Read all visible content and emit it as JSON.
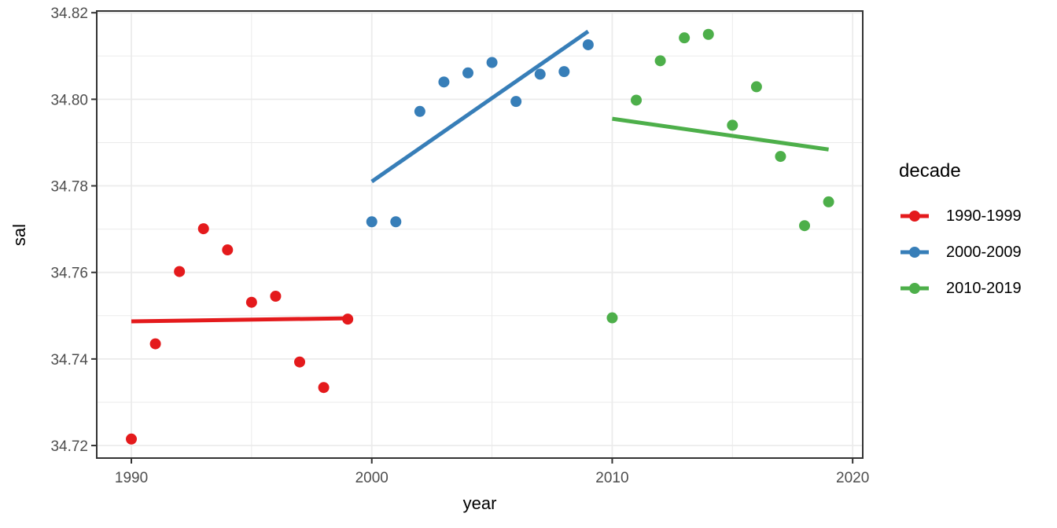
{
  "chart_data": {
    "type": "scatter",
    "title": "",
    "xlabel": "year",
    "ylabel": "sal",
    "legend_title": "decade",
    "legend_position": "right",
    "grid": true,
    "x_range": [
      1988.56,
      2020.42
    ],
    "y_range": [
      34.7171,
      34.8204
    ],
    "x_ticks": {
      "values": [
        1990,
        2000,
        2010,
        2020
      ],
      "labels": [
        "1990",
        "2000",
        "2010",
        "2020"
      ],
      "minor": [
        1995,
        2005,
        2015
      ]
    },
    "y_ticks": {
      "values": [
        34.72,
        34.74,
        34.76,
        34.78,
        34.8,
        34.82
      ],
      "labels": [
        "34.72",
        "34.74",
        "34.76",
        "34.78",
        "34.80",
        "34.82"
      ],
      "minor": [
        34.73,
        34.75,
        34.77,
        34.79,
        34.81
      ]
    },
    "series": [
      {
        "name": "1990-1999",
        "color": "#E41A1C",
        "x": [
          1990,
          1991,
          1992,
          1993,
          1994,
          1995,
          1996,
          1997,
          1998,
          1999
        ],
        "y": [
          34.7215,
          34.7435,
          34.7602,
          34.7701,
          34.7652,
          34.7531,
          34.7545,
          34.7393,
          34.7334,
          34.7492
        ],
        "trend": {
          "x": [
            1990,
            1999
          ],
          "y": [
            34.7487,
            34.7494
          ]
        }
      },
      {
        "name": "2000-2009",
        "color": "#377EB8",
        "x": [
          2000,
          2001,
          2002,
          2003,
          2004,
          2005,
          2006,
          2007,
          2008,
          2009
        ],
        "y": [
          34.7717,
          34.7717,
          34.7972,
          34.804,
          34.8061,
          34.8085,
          34.7995,
          34.8058,
          34.8064,
          34.8126
        ],
        "trend": {
          "x": [
            2000,
            2009
          ],
          "y": [
            34.781,
            34.8157
          ]
        }
      },
      {
        "name": "2010-2019",
        "color": "#4DAF4A",
        "x": [
          2010,
          2011,
          2012,
          2013,
          2014,
          2015,
          2016,
          2017,
          2018,
          2019
        ],
        "y": [
          34.7495,
          34.7998,
          34.8089,
          34.8142,
          34.815,
          34.794,
          34.8029,
          34.7868,
          34.7708,
          34.7763
        ],
        "trend": {
          "x": [
            2010,
            2019
          ],
          "y": [
            34.7955,
            34.7884
          ]
        }
      }
    ]
  },
  "colors": {
    "background": "#FFFFFF",
    "panel_background": "#FFFFFF",
    "panel_border": "#333333",
    "gridline": "#EBEBEB",
    "tick_mark": "#333333",
    "tick_label": "#4D4D4D",
    "axis_title": "#000000",
    "legend_text": "#000000"
  }
}
